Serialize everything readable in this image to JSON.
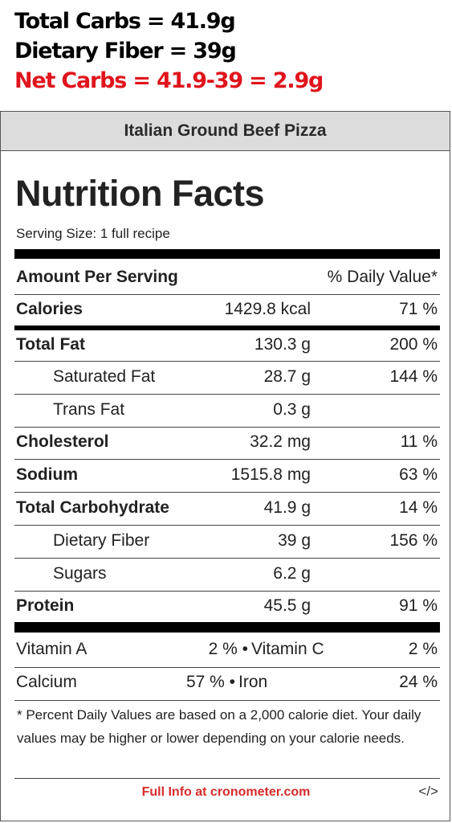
{
  "note": {
    "total_carbs": "Total Carbs = 41.9g",
    "dietary_fiber": "Dietary Fiber = 39g",
    "net_carbs": "Net Carbs = 41.9-39 = 2.9g",
    "net_color": "#e0141c"
  },
  "label": {
    "recipe_name": "Italian Ground Beef Pizza",
    "title": "Nutrition Facts",
    "serving_size": "Serving Size: 1 full recipe",
    "amount_per_serving": "Amount Per Serving",
    "daily_value_header": "% Daily Value*",
    "rows": [
      {
        "name": "Calories",
        "amount": "1429.8 kcal",
        "dv": "71 %"
      },
      {
        "name": "Total Fat",
        "amount": "130.3 g",
        "dv": "200 %"
      },
      {
        "name": "Saturated Fat",
        "amount": "28.7 g",
        "dv": "144 %"
      },
      {
        "name": "Trans Fat",
        "amount": "0.3 g",
        "dv": ""
      },
      {
        "name": "Cholesterol",
        "amount": "32.2 mg",
        "dv": "11 %"
      },
      {
        "name": "Sodium",
        "amount": "1515.8 mg",
        "dv": "63 %"
      },
      {
        "name": "Total Carbohydrate",
        "amount": "41.9 g",
        "dv": "14 %"
      },
      {
        "name": "Dietary Fiber",
        "amount": "39 g",
        "dv": "156 %"
      },
      {
        "name": "Sugars",
        "amount": "6.2 g",
        "dv": ""
      },
      {
        "name": "Protein",
        "amount": "45.5 g",
        "dv": "91 %"
      }
    ],
    "vitamins": [
      {
        "left_name": "Vitamin A",
        "left_value": "2 % •",
        "right_name": "Vitamin C",
        "right_value": "2 %"
      },
      {
        "left_name": "Calcium",
        "left_value": "57 % •",
        "right_name": "Iron",
        "right_value": "24 %"
      }
    ],
    "footnote": "* Percent Daily Values are based on a 2,000 calorie diet. Your daily values may be higher or lower depending on your calorie needs.",
    "full_info": "Full Info at cronometer.com",
    "embed_icon": "</>",
    "link_color": "#d62b2b"
  }
}
